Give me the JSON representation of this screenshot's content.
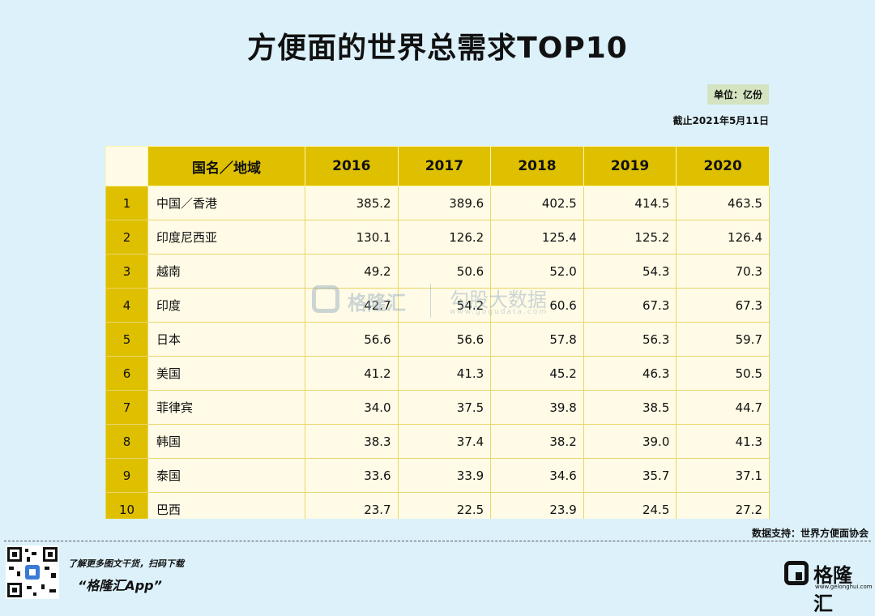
{
  "title": "方便面的世界总需求TOP10",
  "unit_label": "单位：亿份",
  "as_of": "截止2021年5月11日",
  "source": "数据支持：世界方便面协会",
  "watermark": {
    "brand": "格隆汇",
    "right": "勾股大数据",
    "url": "www.gogudata.com"
  },
  "promo": {
    "line1": "了解更多图文干货，扫码下载",
    "line2": "“格隆汇App”"
  },
  "logo": {
    "text": "格隆汇",
    "url": "www.gelonghui.com"
  },
  "chart_data": {
    "type": "table",
    "title": "方便面的世界总需求TOP10",
    "columns": [
      "",
      "国名／地域",
      "2016",
      "2017",
      "2018",
      "2019",
      "2020"
    ],
    "rows": [
      [
        "1",
        "中国／香港",
        "385.2",
        "389.6",
        "402.5",
        "414.5",
        "463.5"
      ],
      [
        "2",
        "印度尼西亚",
        "130.1",
        "126.2",
        "125.4",
        "125.2",
        "126.4"
      ],
      [
        "3",
        "越南",
        "49.2",
        "50.6",
        "52.0",
        "54.3",
        "70.3"
      ],
      [
        "4",
        "印度",
        "42.7",
        "54.2",
        "60.6",
        "67.3",
        "67.3"
      ],
      [
        "5",
        "日本",
        "56.6",
        "56.6",
        "57.8",
        "56.3",
        "59.7"
      ],
      [
        "6",
        "美国",
        "41.2",
        "41.3",
        "45.2",
        "46.3",
        "50.5"
      ],
      [
        "7",
        "菲律宾",
        "34.0",
        "37.5",
        "39.8",
        "38.5",
        "44.7"
      ],
      [
        "8",
        "韩国",
        "38.3",
        "37.4",
        "38.2",
        "39.0",
        "41.3"
      ],
      [
        "9",
        "泰国",
        "33.6",
        "33.9",
        "34.6",
        "35.7",
        "37.1"
      ],
      [
        "10",
        "巴西",
        "23.7",
        "22.5",
        "23.9",
        "24.5",
        "27.2"
      ]
    ],
    "colors": {
      "header": "#dfc000",
      "cell": "#fffbe6",
      "background": "#dcf1fa"
    }
  }
}
